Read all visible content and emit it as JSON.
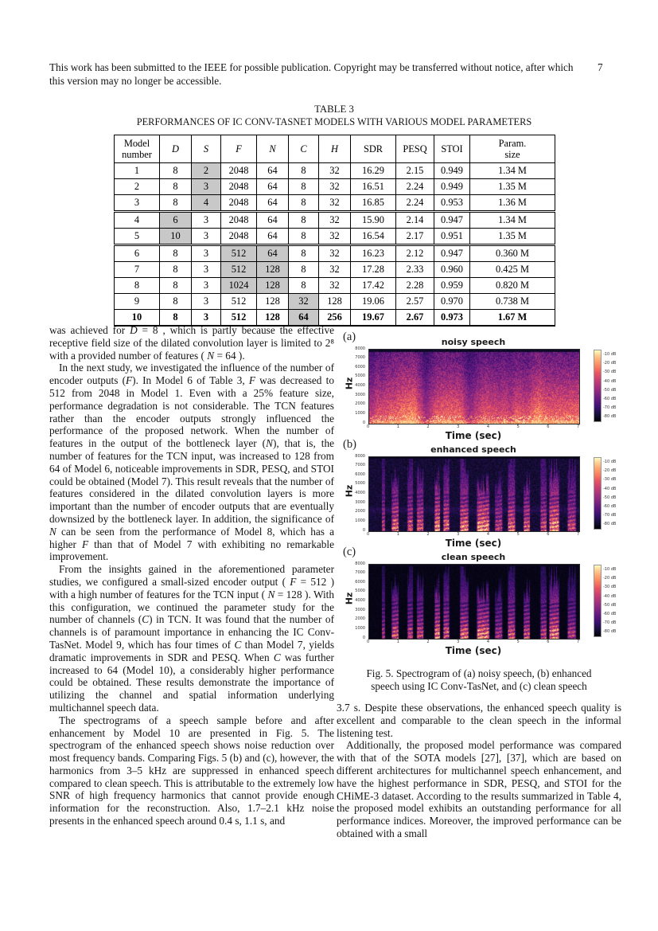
{
  "header": {
    "notice_lines": [
      "This work has been submitted to the IEEE for possible publication. Copyright may be transferred without notice, after which",
      "this version may no longer be accessible."
    ],
    "page_number": "7"
  },
  "table": {
    "label": "TABLE 3",
    "caption": "PERFORMANCES OF IC CONV-TASNET MODELS WITH VARIOUS MODEL PARAMETERS",
    "columns": [
      "Model\nnumber",
      "D",
      "S",
      "F",
      "N",
      "C",
      "H",
      "SDR",
      "PESQ",
      "STOI",
      "Param.\nsize"
    ],
    "rows": [
      {
        "model": "1",
        "values": [
          "8",
          "2",
          "2048",
          "64",
          "8",
          "32",
          "16.29",
          "2.15",
          "0.949",
          "1.34 M"
        ],
        "shaded": [
          1
        ],
        "group_start": false,
        "bold": false
      },
      {
        "model": "2",
        "values": [
          "8",
          "3",
          "2048",
          "64",
          "8",
          "32",
          "16.51",
          "2.24",
          "0.949",
          "1.35 M"
        ],
        "shaded": [
          1
        ],
        "group_start": false,
        "bold": false
      },
      {
        "model": "3",
        "values": [
          "8",
          "4",
          "2048",
          "64",
          "8",
          "32",
          "16.85",
          "2.24",
          "0.953",
          "1.36 M"
        ],
        "shaded": [
          1
        ],
        "group_start": false,
        "bold": false
      },
      {
        "model": "4",
        "values": [
          "6",
          "3",
          "2048",
          "64",
          "8",
          "32",
          "15.90",
          "2.14",
          "0.947",
          "1.34 M"
        ],
        "shaded": [
          0
        ],
        "group_start": true,
        "bold": false
      },
      {
        "model": "5",
        "values": [
          "10",
          "3",
          "2048",
          "64",
          "8",
          "32",
          "16.54",
          "2.17",
          "0.951",
          "1.35 M"
        ],
        "shaded": [
          0
        ],
        "group_start": false,
        "bold": false
      },
      {
        "model": "6",
        "values": [
          "8",
          "3",
          "512",
          "64",
          "8",
          "32",
          "16.23",
          "2.12",
          "0.947",
          "0.360 M"
        ],
        "shaded": [
          2,
          3
        ],
        "group_start": true,
        "bold": false
      },
      {
        "model": "7",
        "values": [
          "8",
          "3",
          "512",
          "128",
          "8",
          "32",
          "17.28",
          "2.33",
          "0.960",
          "0.425 M"
        ],
        "shaded": [
          2,
          3
        ],
        "group_start": false,
        "bold": false
      },
      {
        "model": "8",
        "values": [
          "8",
          "3",
          "1024",
          "128",
          "8",
          "32",
          "17.42",
          "2.28",
          "0.959",
          "0.820 M"
        ],
        "shaded": [
          2,
          3
        ],
        "group_start": false,
        "bold": false
      },
      {
        "model": "9",
        "values": [
          "8",
          "3",
          "512",
          "128",
          "32",
          "128",
          "19.06",
          "2.57",
          "0.970",
          "0.738 M"
        ],
        "shaded": [
          4
        ],
        "group_start": false,
        "bold": false
      },
      {
        "model": "10",
        "values": [
          "8",
          "3",
          "512",
          "128",
          "64",
          "256",
          "19.67",
          "2.67",
          "0.973",
          "1.67 M"
        ],
        "shaded": [
          4
        ],
        "group_start": false,
        "bold": true
      }
    ]
  },
  "body": {
    "left_paragraphs": [
      {
        "indent": false,
        "text": "was achieved for D = 8 , which is partly because the effective receptive field size of the dilated convolution layer is limited to 2⁸ with a provided number of features ( N = 64 )."
      },
      {
        "indent": true,
        "text": "In the next study, we investigated the influence of the number of encoder outputs (F). In Model 6 of Table 3, F was decreased to 512 from 2048 in Model 1. Even with a 25% feature size, performance degradation is not considerable. The TCN features rather than the encoder outputs strongly influenced the performance of the proposed network. When the number of features in the output of the bottleneck layer (N), that is, the number of features for the TCN input, was increased to 128 from 64 of Model 6, noticeable improvements in SDR, PESQ, and STOI could be obtained (Model 7). This result reveals that the number of features considered in the dilated convolution layers is more important than the number of encoder outputs that are eventually downsized by the bottleneck layer. In addition, the significance of N can be seen from the performance of Model 8, which has a higher F than that of Model 7 with exhibiting no remarkable improvement."
      },
      {
        "indent": true,
        "text": "From the insights gained in the aforementioned parameter studies, we configured a small-sized encoder output ( F = 512 ) with a high number of features for the TCN input ( N = 128 ). With this configuration, we continued the parameter study for the number of channels (C) in TCN. It was found that the number of channels is of paramount importance in enhancing the IC Conv-TasNet. Model 9, which has four times of C than Model 7, yields dramatic improvements in SDR and PESQ. When C was further increased to 64 (Model 10), a considerably higher performance could be obtained. These results demonstrate the importance of utilizing the channel and spatial information underlying multichannel speech data."
      },
      {
        "indent": true,
        "text": "The spectrograms of a speech sample before and after enhancement by Model 10 are presented in Fig. 5. The spectrogram of the enhanced speech shows noise reduction over most frequency bands. Comparing Figs. 5 (b) and (c), however, the harmonics from 3–5 kHz are suppressed in enhanced speech compared to clean speech. This is attributable to the extremely low SNR of high frequency harmonics that cannot provide enough information for the reconstruction. Also, 1.7–2.1 kHz noise presents in the enhanced speech around 0.4 s, 1.1 s, and"
      }
    ],
    "right_paragraphs": [
      {
        "indent": false,
        "text": "3.7 s. Despite these observations, the enhanced speech quality is excellent and comparable to the clean speech in the informal listening test."
      },
      {
        "indent": true,
        "text": "Additionally, the proposed model performance was compared with that of the SOTA models [27], [37], which are based on different architectures for multichannel speech enhancement, and have the highest performance in SDR, PESQ, and STOI for the CHiME-3 dataset. According to the results summarized in Table 4, the proposed model exhibits an outstanding performance for all performance indices. Moreover, the improved performance can be obtained with a small"
      }
    ]
  },
  "figure": {
    "panels": [
      {
        "tag": "(a)",
        "title": "noisy speech",
        "style": "noisy",
        "seed": 42
      },
      {
        "tag": "(b)",
        "title": "enhanced speech",
        "style": "enhanced",
        "seed": 7
      },
      {
        "tag": "(c)",
        "title": "clean speech",
        "style": "clean",
        "seed": 7
      }
    ],
    "ylabel": "Hz",
    "xlabel": "Time (sec)",
    "yticks": [
      "8000",
      "7000",
      "6000",
      "5000",
      "4000",
      "3000",
      "2000",
      "1000",
      "0"
    ],
    "xticks": [
      "0",
      "1",
      "2",
      "3",
      "4",
      "5",
      "6",
      "7"
    ],
    "colorbar_labels": [
      "-10 dB",
      "-20 dB",
      "-30 dB",
      "-40 dB",
      "-50 dB",
      "-60 dB",
      "-70 dB",
      "-80 dB"
    ],
    "caption_lines": [
      "Fig. 5. Spectrogram of (a) noisy speech, (b) enhanced",
      "speech using IC Conv-TasNet, and (c) clean speech"
    ]
  },
  "chart_data": [
    {
      "type": "heatmap",
      "subtype": "spectrogram",
      "panel": "(a)",
      "title": "noisy speech",
      "xlabel": "Time (sec)",
      "ylabel": "Hz",
      "x_range": [
        0,
        7
      ],
      "y_range": [
        0,
        8000
      ],
      "xticks": [
        0,
        1,
        2,
        3,
        4,
        5,
        6,
        7
      ],
      "yticks": [
        0,
        1000,
        2000,
        3000,
        4000,
        5000,
        6000,
        7000,
        8000
      ],
      "colorbar": {
        "unit": "dB",
        "ticks": [
          -10,
          -20,
          -30,
          -40,
          -50,
          -60,
          -70,
          -80
        ]
      },
      "colormap": "magma",
      "legend_position": "right",
      "description": "Broadband noise over the whole utterance; energy highest below 2.5 kHz (orange), purple mid band, dark purple above 6 kHz"
    },
    {
      "type": "heatmap",
      "subtype": "spectrogram",
      "panel": "(b)",
      "title": "enhanced speech",
      "xlabel": "Time (sec)",
      "ylabel": "Hz",
      "x_range": [
        0,
        7
      ],
      "y_range": [
        0,
        8000
      ],
      "xticks": [
        0,
        1,
        2,
        3,
        4,
        5,
        6,
        7
      ],
      "yticks": [
        0,
        1000,
        2000,
        3000,
        4000,
        5000,
        6000,
        7000,
        8000
      ],
      "colorbar": {
        "unit": "dB",
        "ticks": [
          -10,
          -20,
          -30,
          -40,
          -50,
          -60,
          -70,
          -80
        ]
      },
      "colormap": "magma",
      "legend_position": "right",
      "description": "Dark background with vertical speech streaks starting near 0.5 s; bright harmonics below 2 kHz; residual noise band near 2 kHz"
    },
    {
      "type": "heatmap",
      "subtype": "spectrogram",
      "panel": "(c)",
      "title": "clean speech",
      "xlabel": "Time (sec)",
      "ylabel": "Hz",
      "x_range": [
        0,
        7
      ],
      "y_range": [
        0,
        8000
      ],
      "xticks": [
        0,
        1,
        2,
        3,
        4,
        5,
        6,
        7
      ],
      "yticks": [
        0,
        1000,
        2000,
        3000,
        4000,
        5000,
        6000,
        7000,
        8000
      ],
      "colorbar": {
        "unit": "dB",
        "ticks": [
          -10,
          -20,
          -30,
          -40,
          -50,
          -60,
          -70,
          -80
        ]
      },
      "colormap": "magma",
      "legend_position": "right",
      "description": "Nearly black background with vertical speech streaks matching panel (b), harmonics visible from 3–5 kHz"
    }
  ]
}
